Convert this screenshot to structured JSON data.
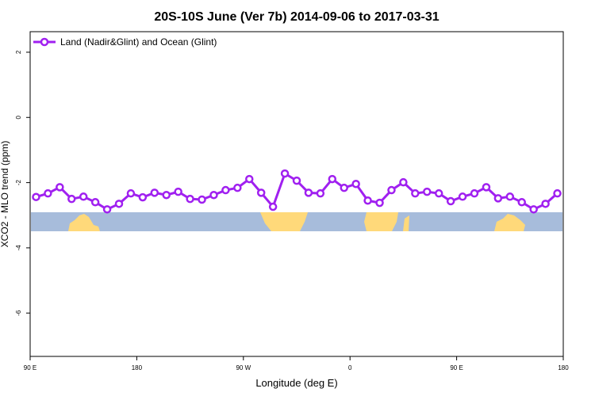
{
  "chart_data": {
    "type": "line",
    "title": "20S-10S June (Ver 7b)   2014-09-06 to 2017-03-31",
    "x_label": "Longitude (deg E)",
    "y_label": "XCO2 - MLO trend (ppm)",
    "xlim": [
      90,
      540
    ],
    "xticks": [
      {
        "value": 90,
        "label": "90 E"
      },
      180,
      {
        "value": 270,
        "label": "90 W"
      },
      {
        "value": 360,
        "label": "0"
      },
      {
        "value": 450,
        "label": "90 E"
      },
      {
        "value": 540,
        "label": "180"
      }
    ],
    "ylim": [
      -7.33,
      2.63
    ],
    "yticks": [
      -6,
      -4,
      -2,
      0,
      2
    ],
    "legend_position": "top-left",
    "x": [
      95,
      105,
      115,
      125,
      135,
      145,
      155,
      165,
      175,
      185,
      195,
      205,
      215,
      225,
      235,
      245,
      255,
      265,
      275,
      285,
      295,
      305,
      315,
      325,
      335,
      345,
      355,
      365,
      375,
      385,
      395,
      405,
      415,
      425,
      435,
      445,
      455,
      465,
      475,
      485,
      495,
      505,
      515,
      525,
      535
    ],
    "series": [
      {
        "name": "Land (Nadir&Glint) and Ocean (Glint)",
        "color": "#a020f0",
        "values": [
          -2.44,
          -2.33,
          -2.14,
          -2.5,
          -2.43,
          -2.6,
          -2.82,
          -2.65,
          -2.33,
          -2.45,
          -2.31,
          -2.38,
          -2.28,
          -2.5,
          -2.52,
          -2.38,
          -2.23,
          -2.16,
          -1.89,
          -2.31,
          -2.74,
          -1.72,
          -1.94,
          -2.31,
          -2.33,
          -1.89,
          -2.16,
          -2.04,
          -2.55,
          -2.62,
          -2.23,
          -1.99,
          -2.33,
          -2.28,
          -2.33,
          -2.57,
          -2.43,
          -2.33,
          -2.14,
          -2.48,
          -2.43,
          -2.6,
          -2.82,
          -2.65,
          -2.33
        ]
      }
    ]
  }
}
